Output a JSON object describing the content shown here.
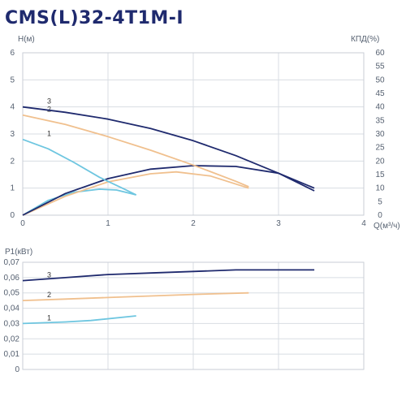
{
  "title": "CMS(L)32-4T1M-I",
  "colors": {
    "curve_1": "#6ec6e0",
    "curve_2": "#f0c08e",
    "curve_3": "#1f2a6e",
    "grid": "#d8dde3",
    "title": "#1f2a6e"
  },
  "chart_data": [
    {
      "type": "line",
      "ylabel_left": "H(м)",
      "ylabel_right": "КПД(%)",
      "xlabel": "Q(м³/ч)",
      "xlim": [
        0,
        4
      ],
      "ylim_left": [
        0,
        6
      ],
      "ylim_right": [
        0,
        60
      ],
      "xticks": [
        "0",
        "1",
        "2",
        "3",
        "4"
      ],
      "yticks_left": [
        "0",
        "1",
        "2",
        "3",
        "4",
        "5",
        "6"
      ],
      "yticks_right": [
        "0",
        "5",
        "10",
        "15",
        "20",
        "25",
        "30",
        "35",
        "40",
        "45",
        "50",
        "55",
        "60"
      ],
      "grid": true,
      "head_curves": [
        {
          "label": "1",
          "color": "curve_1",
          "x": [
            0,
            0.3,
            0.6,
            0.9,
            1.2,
            1.33
          ],
          "y": [
            2.8,
            2.45,
            1.95,
            1.4,
            0.95,
            0.75
          ]
        },
        {
          "label": "2",
          "color": "curve_2",
          "x": [
            0,
            0.5,
            1.0,
            1.5,
            2.0,
            2.5,
            2.65
          ],
          "y": [
            3.7,
            3.35,
            2.9,
            2.4,
            1.85,
            1.25,
            1.05
          ]
        },
        {
          "label": "3",
          "color": "curve_3",
          "x": [
            0,
            0.5,
            1.0,
            1.5,
            2.0,
            2.5,
            3.0,
            3.42
          ],
          "y": [
            4.0,
            3.8,
            3.55,
            3.2,
            2.75,
            2.2,
            1.55,
            0.9
          ]
        }
      ],
      "efficiency_curves": [
        {
          "curve": "1",
          "color": "curve_1",
          "x": [
            0,
            0.3,
            0.6,
            0.9,
            1.1,
            1.33
          ],
          "y": [
            0,
            5.5,
            8.5,
            9.6,
            9.3,
            7.5
          ]
        },
        {
          "curve": "2",
          "color": "curve_2",
          "x": [
            0,
            0.5,
            1.0,
            1.5,
            1.8,
            2.2,
            2.65
          ],
          "y": [
            0,
            7,
            12.3,
            15.3,
            16,
            14.5,
            10
          ]
        },
        {
          "curve": "3",
          "color": "curve_3",
          "x": [
            0,
            0.5,
            1.0,
            1.5,
            2.0,
            2.5,
            3.0,
            3.42
          ],
          "y": [
            0,
            8,
            13.5,
            17,
            18.3,
            18,
            15.5,
            10
          ]
        }
      ]
    },
    {
      "type": "line",
      "ylabel": "P1(кВт)",
      "xlim": [
        0,
        4
      ],
      "ylim": [
        0,
        0.07
      ],
      "yticks": [
        "0",
        "0,01",
        "0,02",
        "0,03",
        "0,04",
        "0,05",
        "0,06",
        "0,07"
      ],
      "grid": true,
      "series": [
        {
          "label": "1",
          "color": "curve_1",
          "x": [
            0,
            0.5,
            0.8,
            1.33
          ],
          "y": [
            0.03,
            0.031,
            0.032,
            0.035
          ]
        },
        {
          "label": "2",
          "color": "curve_2",
          "x": [
            0,
            0.5,
            1.0,
            1.5,
            2.0,
            2.65
          ],
          "y": [
            0.045,
            0.046,
            0.047,
            0.048,
            0.049,
            0.05
          ]
        },
        {
          "label": "3",
          "color": "curve_3",
          "x": [
            0,
            0.5,
            1.0,
            1.5,
            2.0,
            2.5,
            3.0,
            3.42
          ],
          "y": [
            0.058,
            0.06,
            0.062,
            0.063,
            0.064,
            0.065,
            0.065,
            0.065
          ]
        }
      ]
    }
  ]
}
